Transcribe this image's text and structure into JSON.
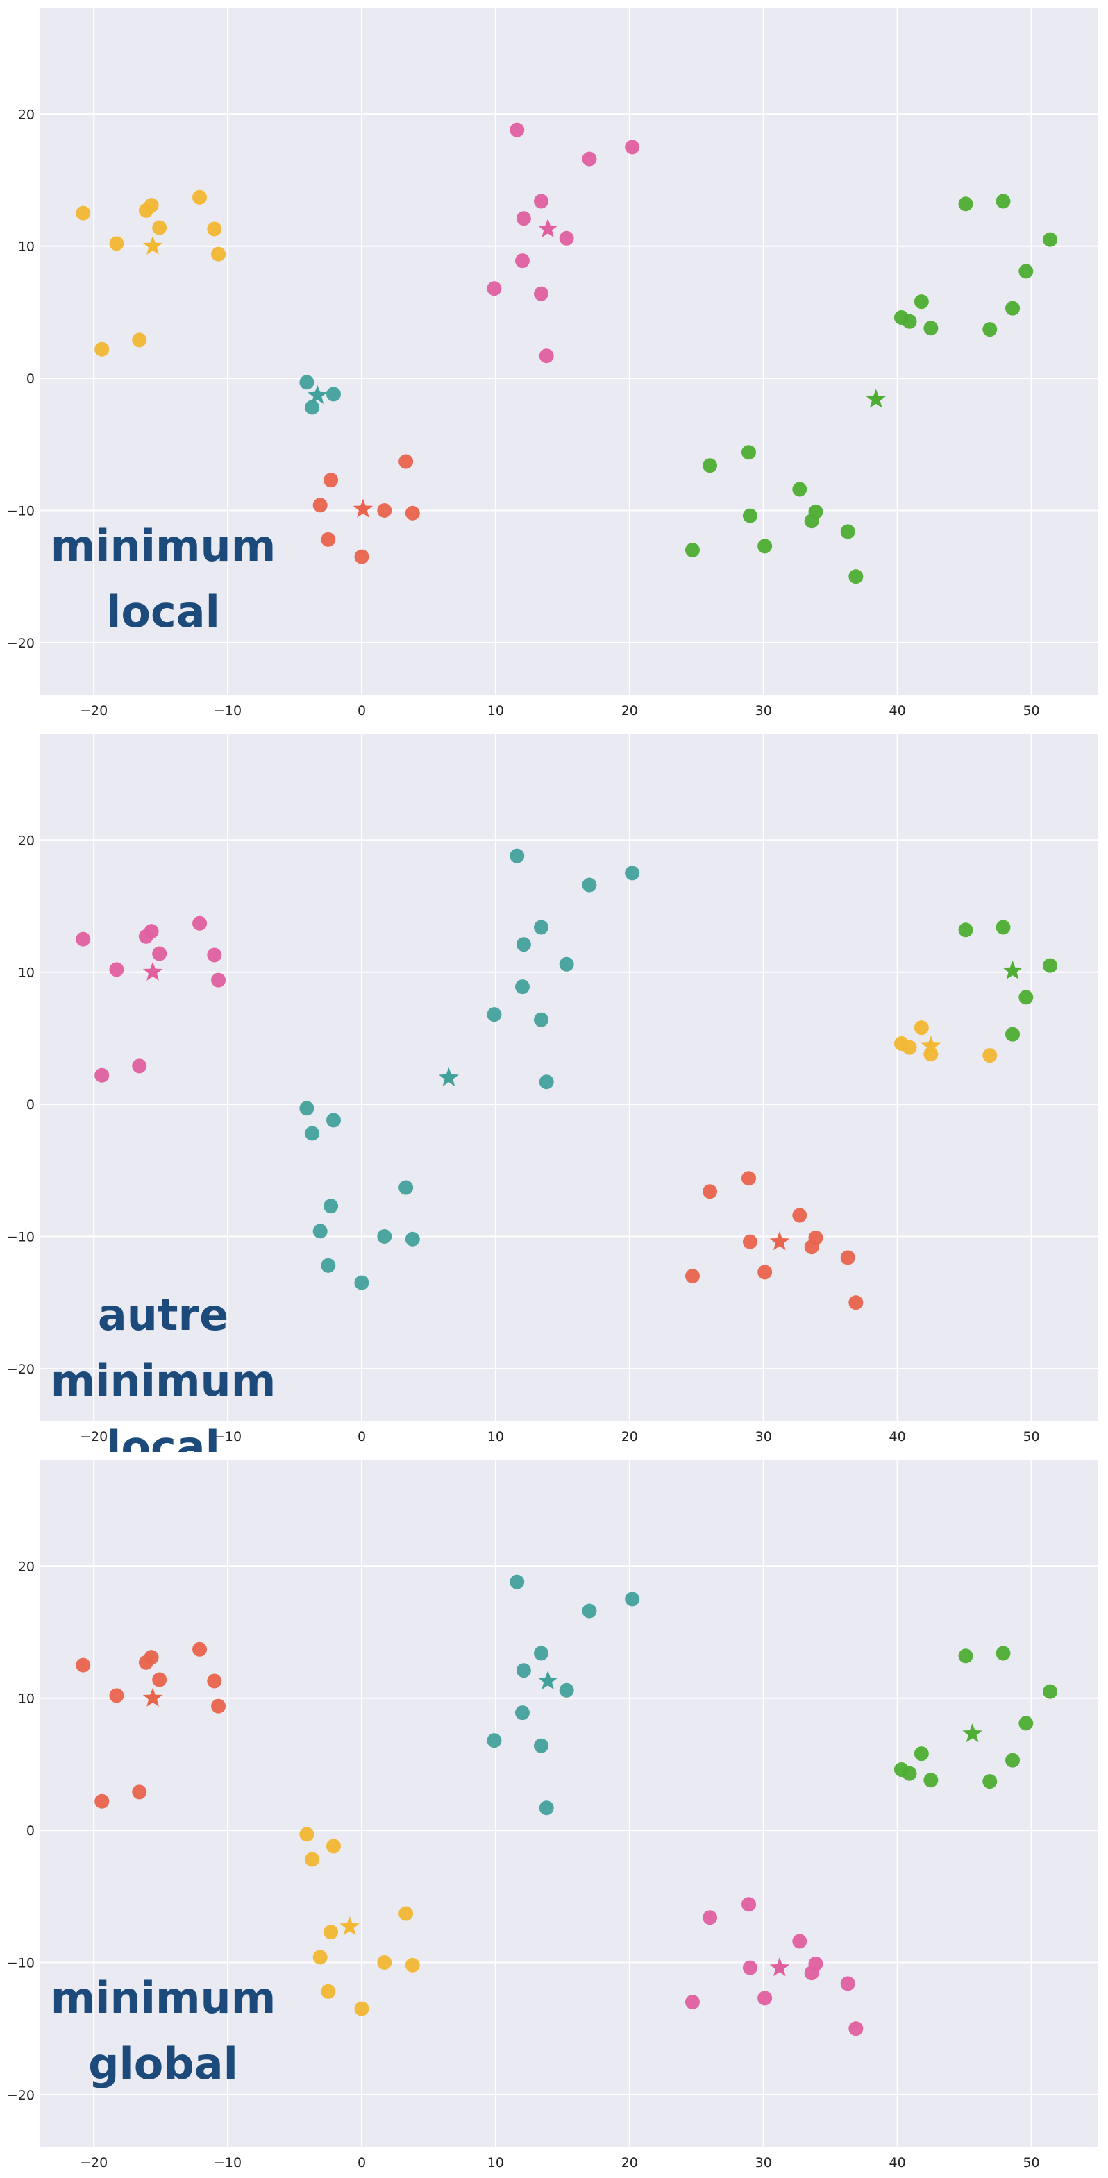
{
  "colors": {
    "yellow": "#f2b733",
    "pink": "#e0609f",
    "teal": "#43a19b",
    "red": "#e9644d",
    "green": "#4ead32",
    "background": "#eaeaf2",
    "grid": "#ffffff",
    "annotation": "#1c4a7a"
  },
  "chart_data": [
    {
      "type": "scatter",
      "xlim": [
        -24,
        55
      ],
      "ylim": [
        -24,
        28
      ],
      "xticks": [
        -20,
        -10,
        0,
        10,
        20,
        30,
        40,
        50
      ],
      "yticks": [
        -20,
        -10,
        0,
        10,
        20
      ],
      "xtick_labels": [
        "−20",
        "−10",
        "0",
        "10",
        "20",
        "30",
        "40",
        "50"
      ],
      "ytick_labels": [
        "−20",
        "−10",
        "0",
        "10",
        "20"
      ],
      "grid": true,
      "annotation": [
        "minimum",
        "local"
      ],
      "series": [
        {
          "color": "yellow",
          "points": [
            [
              -20.8,
              12.5
            ],
            [
              -18.3,
              10.2
            ],
            [
              -16.1,
              12.7
            ],
            [
              -15.7,
              13.1
            ],
            [
              -15.1,
              11.4
            ],
            [
              -12.1,
              13.7
            ],
            [
              -11.0,
              11.3
            ],
            [
              -10.7,
              9.4
            ],
            [
              -19.4,
              2.2
            ],
            [
              -16.6,
              2.9
            ]
          ],
          "centroid": [
            -15.6,
            10.0
          ]
        },
        {
          "color": "pink",
          "points": [
            [
              11.6,
              18.8
            ],
            [
              17.0,
              16.6
            ],
            [
              20.2,
              17.5
            ],
            [
              13.4,
              13.4
            ],
            [
              12.1,
              12.1
            ],
            [
              15.3,
              10.6
            ],
            [
              12.0,
              8.9
            ],
            [
              9.9,
              6.8
            ],
            [
              13.4,
              6.4
            ],
            [
              13.8,
              1.7
            ]
          ],
          "centroid": [
            13.9,
            11.3
          ]
        },
        {
          "color": "teal",
          "points": [
            [
              -4.1,
              -0.3
            ],
            [
              -3.7,
              -2.2
            ],
            [
              -2.1,
              -1.2
            ]
          ],
          "centroid": [
            -3.3,
            -1.3
          ]
        },
        {
          "color": "red",
          "points": [
            [
              -2.3,
              -7.7
            ],
            [
              -3.1,
              -9.6
            ],
            [
              1.7,
              -10.0
            ],
            [
              3.3,
              -6.3
            ],
            [
              3.8,
              -10.2
            ],
            [
              -2.5,
              -12.2
            ],
            [
              0.0,
              -13.5
            ]
          ],
          "centroid": [
            0.1,
            -9.9
          ]
        },
        {
          "color": "green",
          "points": [
            [
              45.1,
              13.2
            ],
            [
              47.9,
              13.4
            ],
            [
              51.4,
              10.5
            ],
            [
              49.6,
              8.1
            ],
            [
              40.3,
              4.6
            ],
            [
              40.9,
              4.3
            ],
            [
              41.8,
              5.8
            ],
            [
              42.5,
              3.8
            ],
            [
              46.9,
              3.7
            ],
            [
              48.6,
              5.3
            ],
            [
              26.0,
              -6.6
            ],
            [
              28.9,
              -5.6
            ],
            [
              32.7,
              -8.4
            ],
            [
              33.9,
              -10.1
            ],
            [
              33.6,
              -10.8
            ],
            [
              29.0,
              -10.4
            ],
            [
              30.1,
              -12.7
            ],
            [
              36.3,
              -11.6
            ],
            [
              24.7,
              -13.0
            ],
            [
              36.9,
              -15.0
            ]
          ],
          "centroid": [
            38.4,
            -1.6
          ]
        }
      ]
    },
    {
      "type": "scatter",
      "xlim": [
        -24,
        55
      ],
      "ylim": [
        -24,
        28
      ],
      "xticks": [
        -20,
        -10,
        0,
        10,
        20,
        30,
        40,
        50
      ],
      "yticks": [
        -20,
        -10,
        0,
        10,
        20
      ],
      "xtick_labels": [
        "−20",
        "−10",
        "0",
        "10",
        "20",
        "30",
        "40",
        "50"
      ],
      "ytick_labels": [
        "−20",
        "−10",
        "0",
        "10",
        "20"
      ],
      "grid": true,
      "annotation": [
        "autre",
        "minimum",
        "local"
      ],
      "series": [
        {
          "color": "pink",
          "points": [
            [
              -20.8,
              12.5
            ],
            [
              -18.3,
              10.2
            ],
            [
              -16.1,
              12.7
            ],
            [
              -15.7,
              13.1
            ],
            [
              -15.1,
              11.4
            ],
            [
              -12.1,
              13.7
            ],
            [
              -11.0,
              11.3
            ],
            [
              -10.7,
              9.4
            ],
            [
              -19.4,
              2.2
            ],
            [
              -16.6,
              2.9
            ]
          ],
          "centroid": [
            -15.6,
            10.0
          ]
        },
        {
          "color": "teal",
          "points": [
            [
              11.6,
              18.8
            ],
            [
              17.0,
              16.6
            ],
            [
              20.2,
              17.5
            ],
            [
              13.4,
              13.4
            ],
            [
              12.1,
              12.1
            ],
            [
              15.3,
              10.6
            ],
            [
              12.0,
              8.9
            ],
            [
              9.9,
              6.8
            ],
            [
              13.4,
              6.4
            ],
            [
              13.8,
              1.7
            ],
            [
              -4.1,
              -0.3
            ],
            [
              -3.7,
              -2.2
            ],
            [
              -2.1,
              -1.2
            ],
            [
              -2.3,
              -7.7
            ],
            [
              -3.1,
              -9.6
            ],
            [
              1.7,
              -10.0
            ],
            [
              3.3,
              -6.3
            ],
            [
              3.8,
              -10.2
            ],
            [
              -2.5,
              -12.2
            ],
            [
              0.0,
              -13.5
            ]
          ],
          "centroid": [
            6.5,
            2.0
          ]
        },
        {
          "color": "green",
          "points": [
            [
              45.1,
              13.2
            ],
            [
              47.9,
              13.4
            ],
            [
              51.4,
              10.5
            ],
            [
              49.6,
              8.1
            ],
            [
              48.6,
              5.3
            ]
          ],
          "centroid": [
            48.6,
            10.1
          ]
        },
        {
          "color": "yellow",
          "points": [
            [
              40.3,
              4.6
            ],
            [
              40.9,
              4.3
            ],
            [
              41.8,
              5.8
            ],
            [
              42.5,
              3.8
            ],
            [
              46.9,
              3.7
            ]
          ],
          "centroid": [
            42.5,
            4.4
          ]
        },
        {
          "color": "red",
          "points": [
            [
              26.0,
              -6.6
            ],
            [
              28.9,
              -5.6
            ],
            [
              32.7,
              -8.4
            ],
            [
              33.9,
              -10.1
            ],
            [
              33.6,
              -10.8
            ],
            [
              29.0,
              -10.4
            ],
            [
              30.1,
              -12.7
            ],
            [
              36.3,
              -11.6
            ],
            [
              24.7,
              -13.0
            ],
            [
              36.9,
              -15.0
            ]
          ],
          "centroid": [
            31.2,
            -10.4
          ]
        }
      ]
    },
    {
      "type": "scatter",
      "xlim": [
        -24,
        55
      ],
      "ylim": [
        -24,
        28
      ],
      "xticks": [
        -20,
        -10,
        0,
        10,
        20,
        30,
        40,
        50
      ],
      "yticks": [
        -20,
        -10,
        0,
        10,
        20
      ],
      "xtick_labels": [
        "−20",
        "−10",
        "0",
        "10",
        "20",
        "30",
        "40",
        "50"
      ],
      "ytick_labels": [
        "−20",
        "−10",
        "0",
        "10",
        "20"
      ],
      "grid": true,
      "annotation": [
        "minimum",
        "global"
      ],
      "series": [
        {
          "color": "red",
          "points": [
            [
              -20.8,
              12.5
            ],
            [
              -18.3,
              10.2
            ],
            [
              -16.1,
              12.7
            ],
            [
              -15.7,
              13.1
            ],
            [
              -15.1,
              11.4
            ],
            [
              -12.1,
              13.7
            ],
            [
              -11.0,
              11.3
            ],
            [
              -10.7,
              9.4
            ],
            [
              -19.4,
              2.2
            ],
            [
              -16.6,
              2.9
            ]
          ],
          "centroid": [
            -15.6,
            10.0
          ]
        },
        {
          "color": "teal",
          "points": [
            [
              11.6,
              18.8
            ],
            [
              17.0,
              16.6
            ],
            [
              20.2,
              17.5
            ],
            [
              13.4,
              13.4
            ],
            [
              12.1,
              12.1
            ],
            [
              15.3,
              10.6
            ],
            [
              12.0,
              8.9
            ],
            [
              9.9,
              6.8
            ],
            [
              13.4,
              6.4
            ],
            [
              13.8,
              1.7
            ]
          ],
          "centroid": [
            13.9,
            11.3
          ]
        },
        {
          "color": "yellow",
          "points": [
            [
              -4.1,
              -0.3
            ],
            [
              -3.7,
              -2.2
            ],
            [
              -2.1,
              -1.2
            ],
            [
              -2.3,
              -7.7
            ],
            [
              -3.1,
              -9.6
            ],
            [
              1.7,
              -10.0
            ],
            [
              3.3,
              -6.3
            ],
            [
              3.8,
              -10.2
            ],
            [
              -2.5,
              -12.2
            ],
            [
              0.0,
              -13.5
            ]
          ],
          "centroid": [
            -0.9,
            -7.3
          ]
        },
        {
          "color": "green",
          "points": [
            [
              45.1,
              13.2
            ],
            [
              47.9,
              13.4
            ],
            [
              51.4,
              10.5
            ],
            [
              49.6,
              8.1
            ],
            [
              40.3,
              4.6
            ],
            [
              40.9,
              4.3
            ],
            [
              41.8,
              5.8
            ],
            [
              42.5,
              3.8
            ],
            [
              46.9,
              3.7
            ],
            [
              48.6,
              5.3
            ]
          ],
          "centroid": [
            45.6,
            7.3
          ]
        },
        {
          "color": "pink",
          "points": [
            [
              26.0,
              -6.6
            ],
            [
              28.9,
              -5.6
            ],
            [
              32.7,
              -8.4
            ],
            [
              33.9,
              -10.1
            ],
            [
              33.6,
              -10.8
            ],
            [
              29.0,
              -10.4
            ],
            [
              30.1,
              -12.7
            ],
            [
              36.3,
              -11.6
            ],
            [
              24.7,
              -13.0
            ],
            [
              36.9,
              -15.0
            ]
          ],
          "centroid": [
            31.2,
            -10.4
          ]
        }
      ]
    }
  ]
}
